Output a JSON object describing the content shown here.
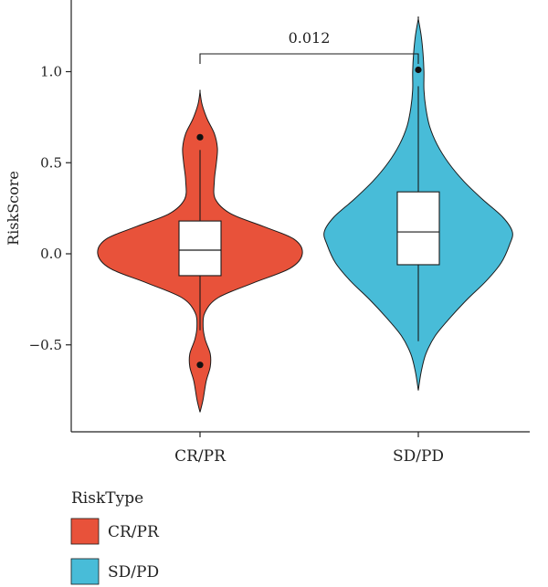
{
  "chart_data": {
    "type": "violin",
    "ylabel": "RiskScore",
    "ylim": [
      -0.87,
      1.29
    ],
    "yticks": [
      -0.5,
      0.0,
      0.5,
      1.0
    ],
    "ytick_labels": [
      "−0.5",
      "0.0",
      "0.5",
      "1.0"
    ],
    "categories": [
      "CR/PR",
      "SD/PD"
    ],
    "legend": {
      "title": "RiskType",
      "entries": [
        {
          "label": "CR/PR",
          "color": "#e8523a"
        },
        {
          "label": "SD/PD",
          "color": "#48bcd8"
        }
      ],
      "placement": "bottom-left"
    },
    "significance": {
      "label": "0.012",
      "between": [
        "CR/PR",
        "SD/PD"
      ]
    },
    "groups": [
      {
        "name": "CR/PR",
        "color": "#e8523a",
        "box": {
          "q1": -0.12,
          "median": 0.02,
          "q3": 0.18,
          "whisker_low": -0.42,
          "whisker_high": 0.57
        },
        "outliers": [
          0.64,
          -0.61
        ],
        "density": [
          {
            "y": -0.87,
            "w": 0.0
          },
          {
            "y": -0.8,
            "w": 0.03
          },
          {
            "y": -0.7,
            "w": 0.06
          },
          {
            "y": -0.62,
            "w": 0.1
          },
          {
            "y": -0.55,
            "w": 0.1
          },
          {
            "y": -0.47,
            "w": 0.05
          },
          {
            "y": -0.4,
            "w": 0.03
          },
          {
            "y": -0.32,
            "w": 0.05
          },
          {
            "y": -0.24,
            "w": 0.18
          },
          {
            "y": -0.16,
            "w": 0.52
          },
          {
            "y": -0.08,
            "w": 0.88
          },
          {
            "y": 0.0,
            "w": 1.0
          },
          {
            "y": 0.08,
            "w": 0.92
          },
          {
            "y": 0.15,
            "w": 0.62
          },
          {
            "y": 0.22,
            "w": 0.3
          },
          {
            "y": 0.3,
            "w": 0.15
          },
          {
            "y": 0.4,
            "w": 0.14
          },
          {
            "y": 0.5,
            "w": 0.16
          },
          {
            "y": 0.58,
            "w": 0.17
          },
          {
            "y": 0.66,
            "w": 0.14
          },
          {
            "y": 0.74,
            "w": 0.07
          },
          {
            "y": 0.82,
            "w": 0.02
          },
          {
            "y": 0.89,
            "w": 0.0
          }
        ]
      },
      {
        "name": "SD/PD",
        "color": "#48bcd8",
        "box": {
          "q1": -0.06,
          "median": 0.12,
          "q3": 0.34,
          "whisker_low": -0.48,
          "whisker_high": 0.92
        },
        "outliers": [
          1.01
        ],
        "density": [
          {
            "y": -0.75,
            "w": 0.0
          },
          {
            "y": -0.65,
            "w": 0.03
          },
          {
            "y": -0.55,
            "w": 0.08
          },
          {
            "y": -0.45,
            "w": 0.18
          },
          {
            "y": -0.35,
            "w": 0.34
          },
          {
            "y": -0.25,
            "w": 0.52
          },
          {
            "y": -0.15,
            "w": 0.72
          },
          {
            "y": -0.05,
            "w": 0.88
          },
          {
            "y": 0.05,
            "w": 0.97
          },
          {
            "y": 0.12,
            "w": 1.0
          },
          {
            "y": 0.2,
            "w": 0.9
          },
          {
            "y": 0.3,
            "w": 0.68
          },
          {
            "y": 0.4,
            "w": 0.48
          },
          {
            "y": 0.5,
            "w": 0.32
          },
          {
            "y": 0.6,
            "w": 0.2
          },
          {
            "y": 0.7,
            "w": 0.12
          },
          {
            "y": 0.8,
            "w": 0.08
          },
          {
            "y": 0.9,
            "w": 0.06
          },
          {
            "y": 1.0,
            "w": 0.06
          },
          {
            "y": 1.1,
            "w": 0.05
          },
          {
            "y": 1.2,
            "w": 0.03
          },
          {
            "y": 1.29,
            "w": 0.0
          }
        ]
      }
    ]
  }
}
